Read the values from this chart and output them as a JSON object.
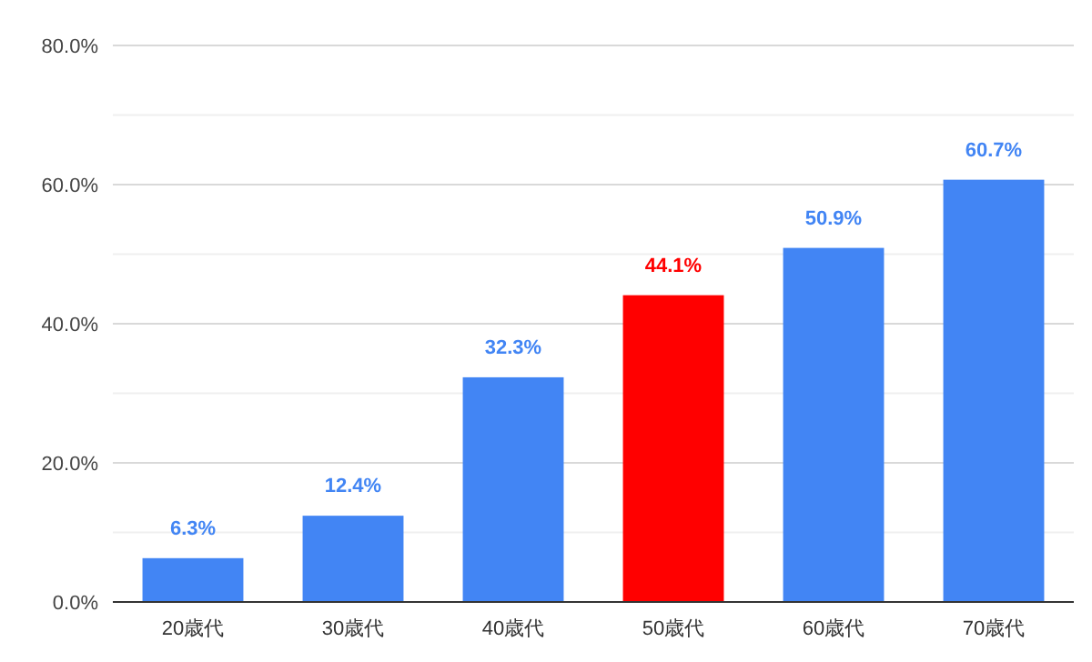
{
  "chart_data": {
    "type": "bar",
    "categories": [
      "20歳代",
      "30歳代",
      "40歳代",
      "50歳代",
      "60歳代",
      "70歳代"
    ],
    "values": [
      6.3,
      12.4,
      32.3,
      44.1,
      50.9,
      60.7
    ],
    "value_labels": [
      "6.3%",
      "12.4%",
      "32.3%",
      "44.1%",
      "50.9%",
      "60.7%"
    ],
    "colors": [
      "#4285f4",
      "#4285f4",
      "#4285f4",
      "#ff0000",
      "#4285f4",
      "#4285f4"
    ],
    "ylim": [
      0,
      80
    ],
    "yticks": [
      {
        "value": 0,
        "label": "0.0%"
      },
      {
        "value": 10,
        "label": null
      },
      {
        "value": 20,
        "label": "20.0%"
      },
      {
        "value": 30,
        "label": null
      },
      {
        "value": 40,
        "label": "40.0%"
      },
      {
        "value": 50,
        "label": null
      },
      {
        "value": 60,
        "label": "60.0%"
      },
      {
        "value": 70,
        "label": null
      },
      {
        "value": 80,
        "label": "80.0%"
      }
    ],
    "grid": "y"
  }
}
